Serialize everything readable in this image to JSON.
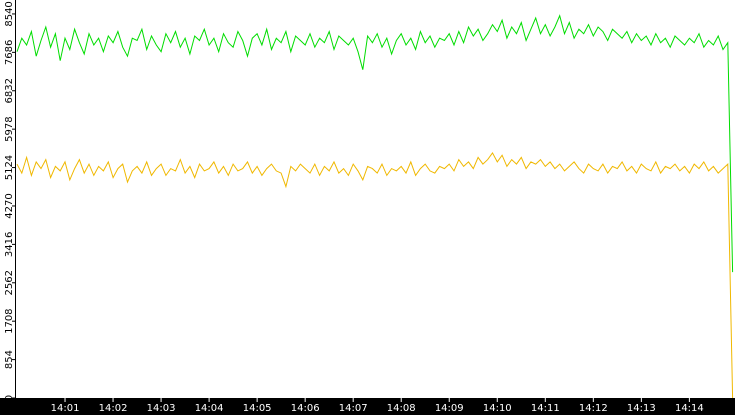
{
  "chart_data": {
    "type": "line",
    "x": [
      0,
      0.1,
      0.2,
      0.3,
      0.4,
      0.5,
      0.6,
      0.7,
      0.8,
      0.9,
      1,
      1.1,
      1.2,
      1.3,
      1.4,
      1.5,
      1.6,
      1.7,
      1.8,
      1.9,
      2,
      2.1,
      2.2,
      2.3,
      2.4,
      2.5,
      2.6,
      2.7,
      2.8,
      2.9,
      3,
      3.1,
      3.2,
      3.3,
      3.4,
      3.5,
      3.6,
      3.7,
      3.8,
      3.9,
      4,
      4.1,
      4.2,
      4.3,
      4.4,
      4.5,
      4.6,
      4.7,
      4.8,
      4.9,
      5,
      5.1,
      5.2,
      5.3,
      5.4,
      5.5,
      5.6,
      5.7,
      5.8,
      5.9,
      6,
      6.1,
      6.2,
      6.3,
      6.4,
      6.5,
      6.6,
      6.7,
      6.8,
      6.9,
      7,
      7.1,
      7.2,
      7.3,
      7.4,
      7.5,
      7.6,
      7.7,
      7.8,
      7.9,
      8,
      8.1,
      8.2,
      8.3,
      8.4,
      8.5,
      8.6,
      8.7,
      8.8,
      8.9,
      9,
      9.1,
      9.2,
      9.3,
      9.4,
      9.5,
      9.6,
      9.7,
      9.8,
      9.9,
      10,
      10.1,
      10.2,
      10.3,
      10.4,
      10.5,
      10.6,
      10.7,
      10.8,
      10.9,
      11,
      11.1,
      11.2,
      11.3,
      11.4,
      11.5,
      11.6,
      11.7,
      11.8,
      11.9,
      12,
      12.1,
      12.2,
      12.3,
      12.4,
      12.5,
      12.6,
      12.7,
      12.8,
      12.9,
      13,
      13.1,
      13.2,
      13.3,
      13.4,
      13.5,
      13.6,
      13.7,
      13.8,
      13.9,
      14,
      14.1,
      14.2,
      14.3,
      14.4,
      14.5,
      14.6,
      14.7,
      14.8,
      14.9
    ],
    "series": [
      {
        "color": "#00dd00",
        "values": [
          7700,
          8000,
          7850,
          8150,
          7600,
          7950,
          8250,
          7800,
          8100,
          7500,
          8000,
          7750,
          8200,
          7900,
          7650,
          8100,
          7850,
          8000,
          7700,
          8050,
          7900,
          8150,
          7800,
          7600,
          8000,
          7950,
          8200,
          7750,
          8050,
          7850,
          7700,
          8100,
          7900,
          8150,
          7800,
          8000,
          7650,
          8050,
          7950,
          8200,
          7850,
          8000,
          7700,
          8100,
          7900,
          7800,
          8150,
          7950,
          7600,
          8000,
          8100,
          7850,
          8200,
          7750,
          8000,
          7900,
          8150,
          7700,
          8050,
          7950,
          7850,
          8100,
          7800,
          8000,
          7900,
          8150,
          7750,
          8050,
          7950,
          7850,
          8000,
          7700,
          7300,
          8050,
          7900,
          8100,
          7800,
          8000,
          7650,
          7950,
          8100,
          7850,
          8000,
          7750,
          8150,
          7900,
          8050,
          7800,
          8000,
          7950,
          8100,
          7850,
          8150,
          7900,
          8250,
          8050,
          8200,
          7950,
          8100,
          8300,
          8150,
          8400,
          8000,
          8250,
          8100,
          8350,
          7950,
          8200,
          8450,
          8100,
          8300,
          8050,
          8250,
          8500,
          8100,
          8350,
          8000,
          8200,
          8100,
          8300,
          8050,
          8250,
          8150,
          7950,
          8200,
          8100,
          8000,
          8150,
          7900,
          8100,
          7950,
          8050,
          7850,
          8100,
          7900,
          8000,
          7800,
          8050,
          7950,
          7850,
          8000,
          7900,
          8100,
          7800,
          7950,
          7850,
          8050,
          7750,
          7900,
          2800
        ]
      },
      {
        "color": "#f0b800",
        "values": [
          5200,
          5000,
          5350,
          4950,
          5250,
          5100,
          5300,
          4900,
          5150,
          5050,
          5250,
          4850,
          5100,
          5300,
          5000,
          5200,
          4950,
          5150,
          5050,
          5250,
          4900,
          5100,
          5200,
          4800,
          5050,
          5150,
          5000,
          5250,
          4950,
          5100,
          5200,
          4950,
          5100,
          5050,
          5300,
          5000,
          5150,
          4900,
          5200,
          5050,
          5100,
          5250,
          5000,
          5150,
          4950,
          5200,
          5050,
          5100,
          5250,
          5000,
          5150,
          4950,
          5100,
          5200,
          5050,
          5000,
          4700,
          5150,
          5050,
          5200,
          5100,
          5000,
          5200,
          4950,
          5150,
          5050,
          5250,
          5000,
          5100,
          4950,
          5200,
          5050,
          4850,
          5150,
          5100,
          5000,
          5200,
          4950,
          5100,
          5050,
          5150,
          5000,
          5250,
          4950,
          5100,
          5200,
          5050,
          5000,
          5150,
          5100,
          5200,
          5050,
          5300,
          5150,
          5250,
          5100,
          5350,
          5200,
          5300,
          5450,
          5250,
          5400,
          5150,
          5300,
          5200,
          5350,
          5100,
          5250,
          5200,
          5300,
          5150,
          5250,
          5100,
          5200,
          5050,
          5150,
          5250,
          5100,
          5000,
          5200,
          5100,
          5050,
          5200,
          5000,
          5150,
          5100,
          5250,
          5050,
          5150,
          5000,
          5200,
          5100,
          5050,
          5250,
          5000,
          5150,
          5100,
          5200,
          5050,
          5150,
          5000,
          5200,
          5100,
          5250,
          5050,
          5150,
          5000,
          5100,
          5200,
          0
        ]
      }
    ],
    "xlim": [
      0,
      14.95
    ],
    "xticks": [
      {
        "value": 1,
        "label": "14:01"
      },
      {
        "value": 2,
        "label": "14:02"
      },
      {
        "value": 3,
        "label": "14:03"
      },
      {
        "value": 4,
        "label": "14:04"
      },
      {
        "value": 5,
        "label": "14:05"
      },
      {
        "value": 6,
        "label": "14:06"
      },
      {
        "value": 7,
        "label": "14:07"
      },
      {
        "value": 8,
        "label": "14:08"
      },
      {
        "value": 9,
        "label": "14:09"
      },
      {
        "value": 10,
        "label": "14:10"
      },
      {
        "value": 11,
        "label": "14:11"
      },
      {
        "value": 12,
        "label": "14:12"
      },
      {
        "value": 13,
        "label": "14:13"
      },
      {
        "value": 14,
        "label": "14:14"
      }
    ],
    "ylim": [
      0,
      8850
    ],
    "yticks": [
      0,
      854,
      1708,
      2562,
      3416,
      4270,
      5124,
      5978,
      6832,
      7686,
      8540
    ]
  }
}
